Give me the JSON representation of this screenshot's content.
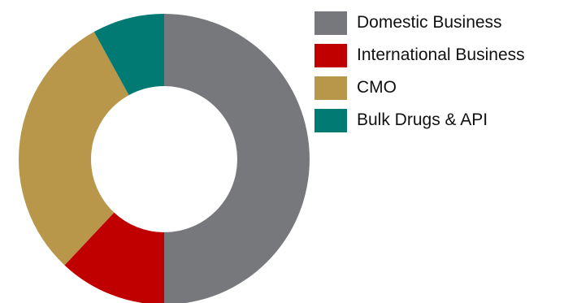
{
  "chart_data": {
    "type": "pie",
    "donut": true,
    "title": "",
    "legend_position": "top-right",
    "series": [
      {
        "name": "Domestic Business",
        "value": 50.0,
        "color": "#77787b"
      },
      {
        "name": "International Business",
        "value": 12.0,
        "color": "#c00000"
      },
      {
        "name": "CMO",
        "value": 30.0,
        "color": "#b8964a"
      },
      {
        "name": "Bulk Drugs & API",
        "value": 8.0,
        "color": "#007a72"
      }
    ]
  }
}
